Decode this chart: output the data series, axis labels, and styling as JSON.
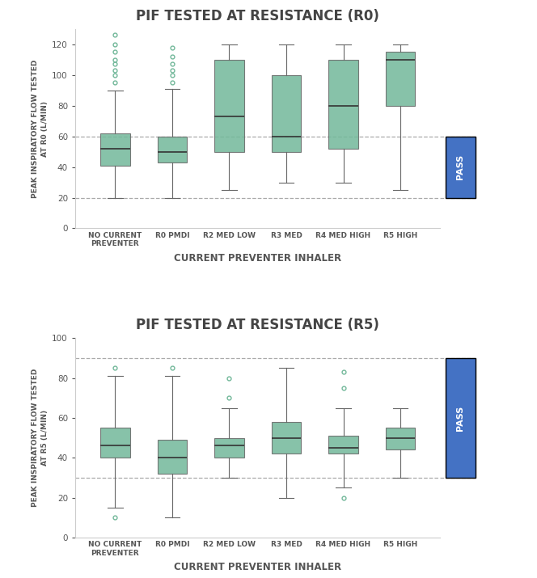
{
  "title_r0": "PIF TESTED AT RESISTANCE (R0)",
  "title_r5": "PIF TESTED AT RESISTANCE (R5)",
  "xlabel": "CURRENT PREVENTER INHALER",
  "ylabel_r0": "PEAK INSPIRATORY FLOW TESTED\nAT R0 (L/MIN)",
  "ylabel_r5": "PEAK INSPIRATORY FLOW TESTED\nAT R5 (L/MIN)",
  "categories": [
    "NO CURRENT\nPREVENTER",
    "R0 PMDI",
    "R2 MED LOW",
    "R3 MED",
    "R4 MED HIGH",
    "R5 HIGH"
  ],
  "box_color": "#72b89a",
  "box_edge_color": "#666666",
  "median_color": "#333333",
  "whisker_color": "#666666",
  "pass_color": "#4472c4",
  "background_color": "#ffffff",
  "r0": {
    "ylim": [
      0,
      130
    ],
    "yticks": [
      0,
      20,
      40,
      60,
      80,
      100,
      120
    ],
    "hlines": [
      20,
      60
    ],
    "pass_range": [
      20,
      60
    ],
    "boxes": [
      {
        "q1": 41,
        "median": 52,
        "q3": 62,
        "whislo": 20,
        "whishi": 90,
        "fliers": [
          95,
          100,
          103,
          107,
          110,
          115,
          120,
          126
        ]
      },
      {
        "q1": 43,
        "median": 50,
        "q3": 60,
        "whislo": 20,
        "whishi": 91,
        "fliers": [
          95,
          100,
          103,
          107,
          112,
          118
        ]
      },
      {
        "q1": 50,
        "median": 73,
        "q3": 110,
        "whislo": 25,
        "whishi": 120,
        "fliers": []
      },
      {
        "q1": 50,
        "median": 60,
        "q3": 100,
        "whislo": 30,
        "whishi": 120,
        "fliers": []
      },
      {
        "q1": 52,
        "median": 80,
        "q3": 110,
        "whislo": 30,
        "whishi": 120,
        "fliers": []
      },
      {
        "q1": 80,
        "median": 110,
        "q3": 115,
        "whislo": 25,
        "whishi": 120,
        "fliers": []
      }
    ]
  },
  "r5": {
    "ylim": [
      0,
      100
    ],
    "yticks": [
      0,
      20,
      40,
      60,
      80,
      100
    ],
    "hlines": [
      30,
      90
    ],
    "pass_range": [
      30,
      90
    ],
    "boxes": [
      {
        "q1": 40,
        "median": 46,
        "q3": 55,
        "whislo": 15,
        "whishi": 81,
        "fliers": [
          10,
          85
        ]
      },
      {
        "q1": 32,
        "median": 40,
        "q3": 49,
        "whislo": 10,
        "whishi": 81,
        "fliers": [
          85
        ]
      },
      {
        "q1": 40,
        "median": 46,
        "q3": 50,
        "whislo": 30,
        "whishi": 65,
        "fliers": [
          70,
          80
        ]
      },
      {
        "q1": 42,
        "median": 50,
        "q3": 58,
        "whislo": 20,
        "whishi": 85,
        "fliers": []
      },
      {
        "q1": 42,
        "median": 45,
        "q3": 51,
        "whislo": 25,
        "whishi": 65,
        "fliers": [
          20,
          75,
          83
        ]
      },
      {
        "q1": 44,
        "median": 50,
        "q3": 55,
        "whislo": 30,
        "whishi": 65,
        "fliers": []
      }
    ]
  }
}
